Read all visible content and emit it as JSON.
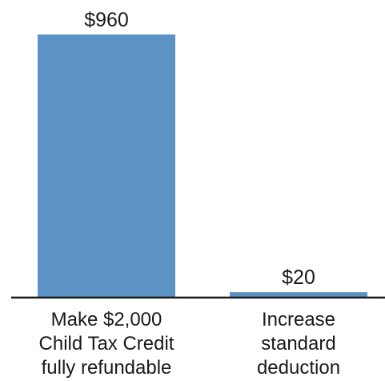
{
  "chart_data": {
    "type": "bar",
    "categories": [
      [
        "Make $2,000",
        "Child Tax Credit",
        "fully refundable"
      ],
      [
        "Increase",
        "standard",
        "deduction"
      ]
    ],
    "values": [
      960,
      20
    ],
    "value_labels": [
      "$960",
      "$20"
    ],
    "title": "",
    "xlabel": "",
    "ylabel": "",
    "ylim": [
      0,
      960
    ],
    "grid": false,
    "legend": "none",
    "colors": {
      "bar": "#5b93c5",
      "axis": "#1a1a1a",
      "text": "#1a1a1a"
    }
  }
}
